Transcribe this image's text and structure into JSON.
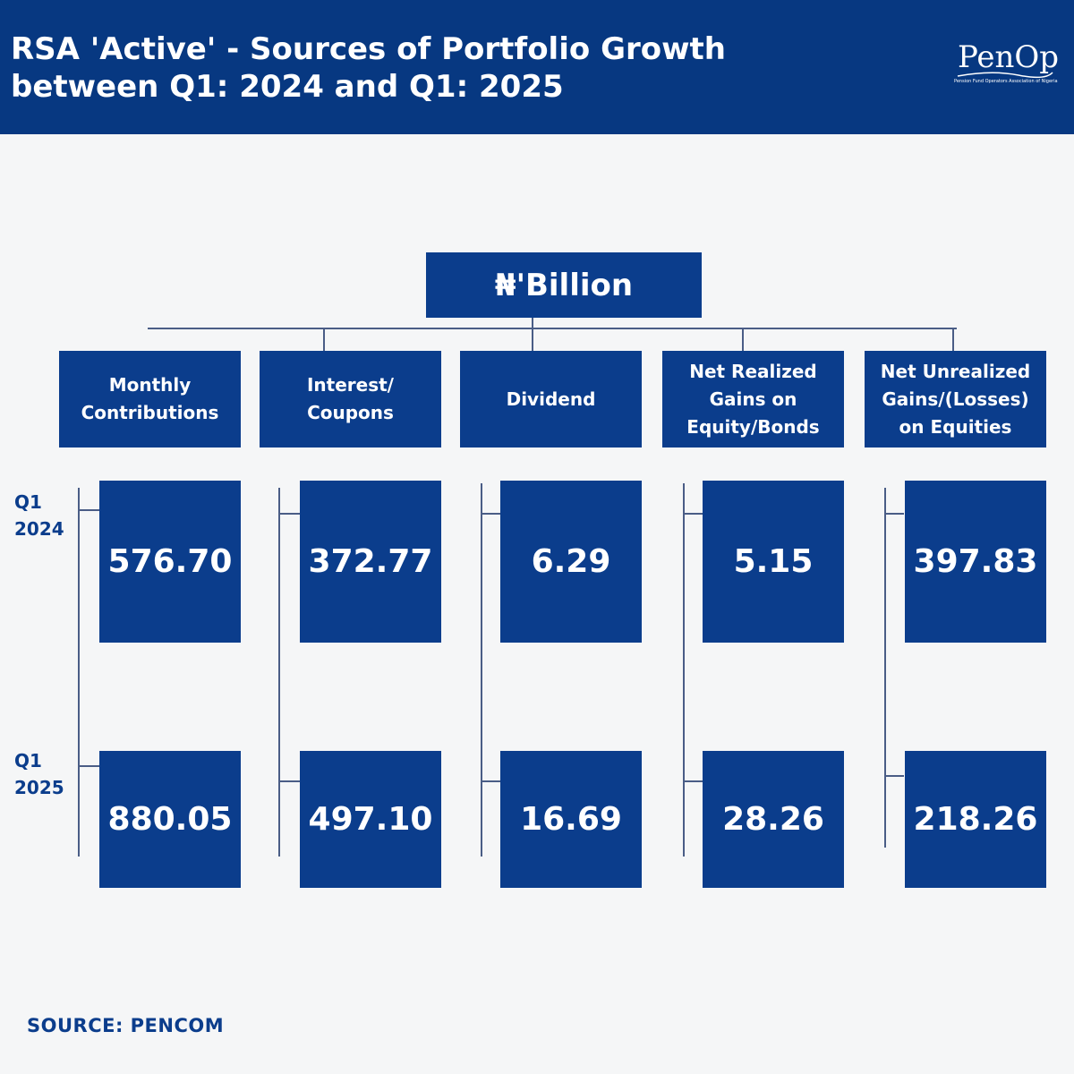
{
  "header": {
    "title_line1": "RSA 'Active' - Sources of Portfolio Growth",
    "title_line2": "between Q1: 2024 and Q1: 2025",
    "logo_text": "PenOp",
    "logo_tagline": "Pension Fund Operators Association of Nigeria"
  },
  "unit_label": "₦'Billion",
  "row_labels": {
    "q1_2024": {
      "line1": "Q1",
      "line2": "2024"
    },
    "q1_2025": {
      "line1": "Q1",
      "line2": "2025"
    }
  },
  "categories": [
    {
      "line1": "Monthly",
      "line2": "Contributions",
      "line3": "",
      "q1_2024": "576.70",
      "q1_2025": "880.05"
    },
    {
      "line1": "Interest/",
      "line2": "Coupons",
      "line3": "",
      "q1_2024": "372.77",
      "q1_2025": "497.10"
    },
    {
      "line1": "Dividend",
      "line2": "",
      "line3": "",
      "q1_2024": "6.29",
      "q1_2025": "16.69"
    },
    {
      "line1": "Net Realized",
      "line2": "Gains on",
      "line3": "Equity/Bonds",
      "q1_2024": "5.15",
      "q1_2025": "28.26"
    },
    {
      "line1": "Net Unrealized",
      "line2": "Gains/(Losses)",
      "line3": "on Equities",
      "q1_2024": "397.83",
      "q1_2025": "218.26"
    }
  ],
  "source": "SOURCE: PENCOM",
  "colors": {
    "header_bg": "#073881",
    "box_bg": "#0b3d8c",
    "page_bg": "#f5f6f7"
  }
}
